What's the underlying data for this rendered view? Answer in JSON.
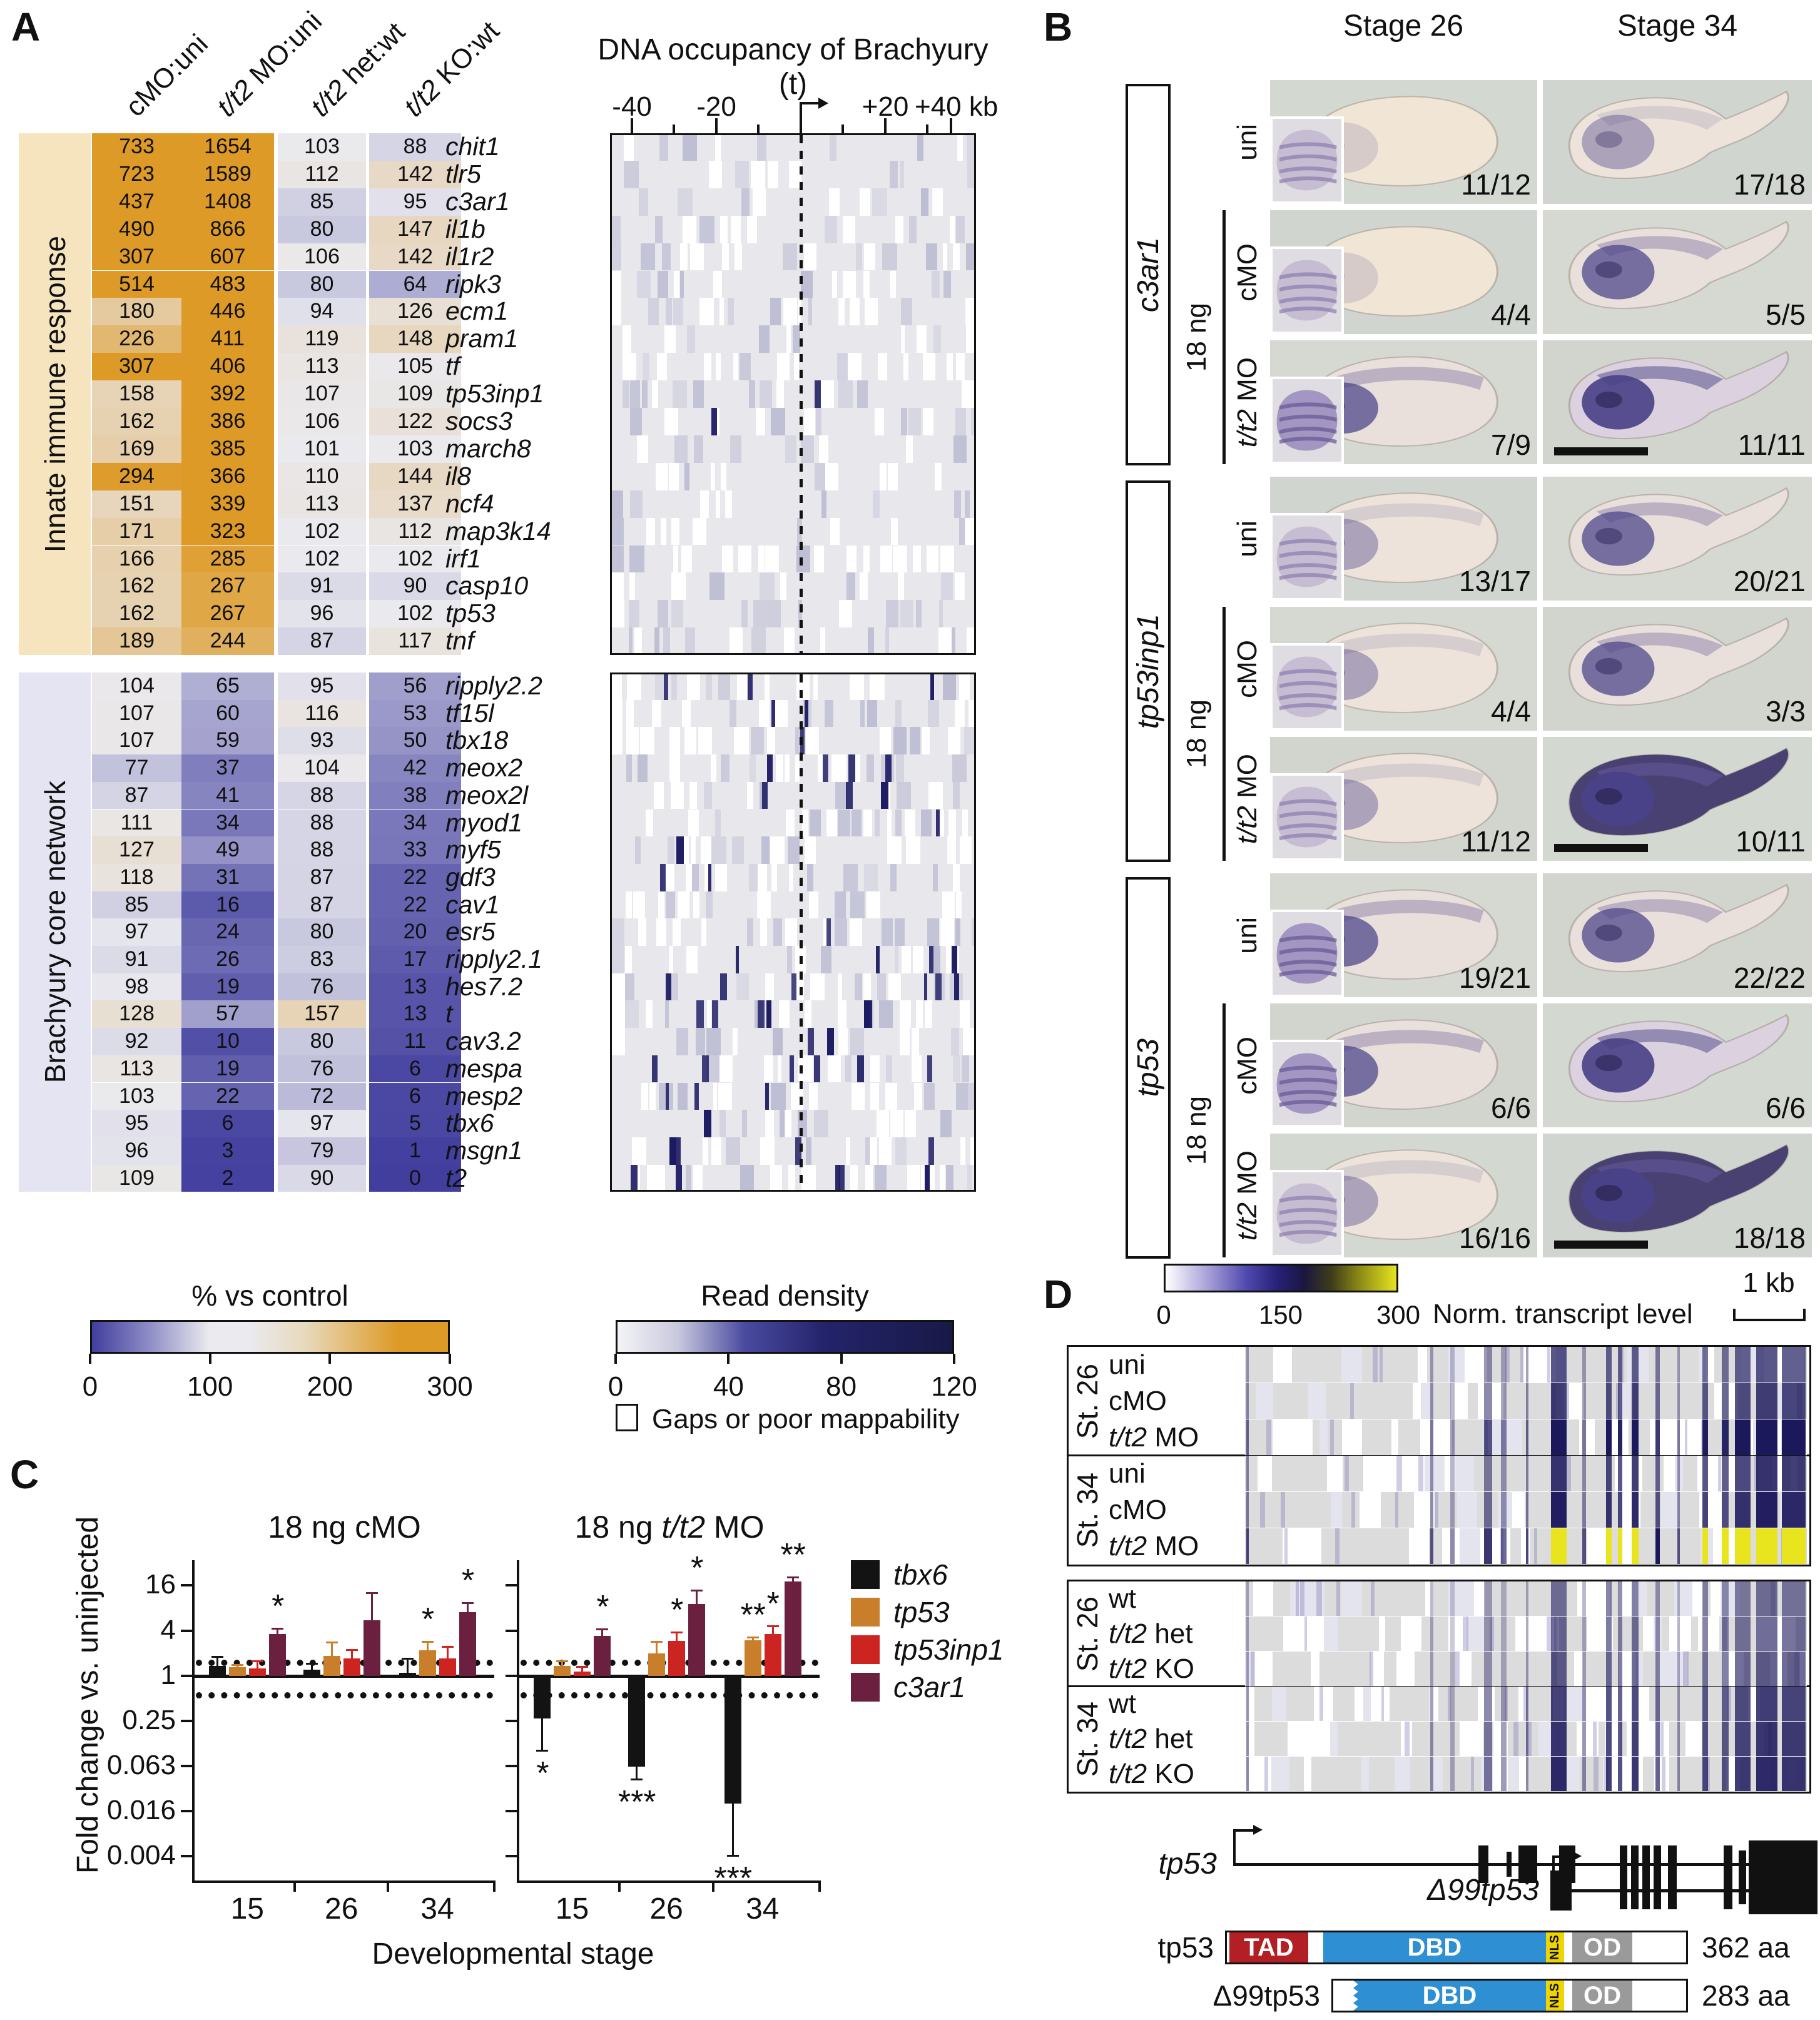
{
  "panels": {
    "a": "A",
    "b": "B",
    "c": "C",
    "d": "D"
  },
  "panel_a": {
    "col_headers": [
      "cMO:uni",
      "t/t2 MO:uni",
      "t/t2 het:wt",
      "t/t2 KO:wt"
    ],
    "occupancy": {
      "title": "DNA occupancy of Brachyury (t)",
      "axis_labels": [
        "-40",
        "-20",
        "+20",
        "+40 kb"
      ]
    },
    "groups": [
      {
        "name": "Innate immune response",
        "band_color": "#F6E4BE",
        "rows": [
          {
            "gene": "chit1",
            "values": [
              733,
              1654,
              103,
              88
            ],
            "peaks": 0
          },
          {
            "gene": "tlr5",
            "values": [
              723,
              1589,
              112,
              142
            ],
            "peaks": 0
          },
          {
            "gene": "c3ar1",
            "values": [
              437,
              1408,
              85,
              95
            ],
            "peaks": 0
          },
          {
            "gene": "il1b",
            "values": [
              490,
              866,
              80,
              147
            ],
            "peaks": 0
          },
          {
            "gene": "il1r2",
            "values": [
              307,
              607,
              106,
              142
            ],
            "peaks": 0
          },
          {
            "gene": "ripk3",
            "values": [
              514,
              483,
              80,
              64
            ],
            "peaks": 0
          },
          {
            "gene": "ecm1",
            "values": [
              180,
              446,
              94,
              126
            ],
            "peaks": 0
          },
          {
            "gene": "pram1",
            "values": [
              226,
              411,
              119,
              148
            ],
            "peaks": 0
          },
          {
            "gene": "tf",
            "values": [
              307,
              406,
              113,
              105
            ],
            "peaks": 0
          },
          {
            "gene": "tp53inp1",
            "values": [
              158,
              392,
              107,
              109
            ],
            "peaks": 1
          },
          {
            "gene": "socs3",
            "values": [
              162,
              386,
              106,
              122
            ],
            "peaks": 1
          },
          {
            "gene": "march8",
            "values": [
              169,
              385,
              101,
              103
            ],
            "peaks": 0
          },
          {
            "gene": "il8",
            "values": [
              294,
              366,
              110,
              144
            ],
            "peaks": 0
          },
          {
            "gene": "ncf4",
            "values": [
              151,
              339,
              113,
              137
            ],
            "peaks": 0
          },
          {
            "gene": "map3k14",
            "values": [
              171,
              323,
              102,
              112
            ],
            "peaks": 0
          },
          {
            "gene": "irf1",
            "values": [
              166,
              285,
              102,
              102
            ],
            "peaks": 0
          },
          {
            "gene": "casp10",
            "values": [
              162,
              267,
              91,
              90
            ],
            "peaks": 0
          },
          {
            "gene": "tp53",
            "values": [
              162,
              267,
              96,
              102
            ],
            "peaks": 0
          },
          {
            "gene": "tnf",
            "values": [
              189,
              244,
              87,
              117
            ],
            "peaks": 0
          }
        ]
      },
      {
        "name": "Brachyury core network",
        "band_color": "#E4E4F2",
        "rows": [
          {
            "gene": "ripply2.2",
            "values": [
              104,
              65,
              95,
              56
            ],
            "peaks": 3
          },
          {
            "gene": "tf15l",
            "values": [
              107,
              60,
              116,
              53
            ],
            "peaks": 2
          },
          {
            "gene": "tbx18",
            "values": [
              107,
              59,
              93,
              50
            ],
            "peaks": 1
          },
          {
            "gene": "meox2",
            "values": [
              77,
              37,
              104,
              42
            ],
            "peaks": 4
          },
          {
            "gene": "meox2l",
            "values": [
              87,
              41,
              88,
              38
            ],
            "peaks": 3
          },
          {
            "gene": "myod1",
            "values": [
              111,
              34,
              88,
              34
            ],
            "peaks": 1
          },
          {
            "gene": "myf5",
            "values": [
              127,
              49,
              88,
              33
            ],
            "peaks": 1
          },
          {
            "gene": "gdf3",
            "values": [
              118,
              31,
              87,
              22
            ],
            "peaks": 2
          },
          {
            "gene": "cav1",
            "values": [
              85,
              16,
              87,
              22
            ],
            "peaks": 0
          },
          {
            "gene": "esr5",
            "values": [
              97,
              24,
              80,
              20
            ],
            "peaks": 1
          },
          {
            "gene": "ripply2.1",
            "values": [
              91,
              26,
              83,
              17
            ],
            "peaks": 4
          },
          {
            "gene": "hes7.2",
            "values": [
              98,
              19,
              76,
              13
            ],
            "peaks": 6
          },
          {
            "gene": "t",
            "values": [
              128,
              57,
              157,
              13
            ],
            "peaks": 6
          },
          {
            "gene": "cav3.2",
            "values": [
              92,
              10,
              80,
              11
            ],
            "peaks": 2
          },
          {
            "gene": "mespa",
            "values": [
              113,
              19,
              76,
              6
            ],
            "peaks": 6
          },
          {
            "gene": "mesp2",
            "values": [
              103,
              22,
              72,
              6
            ],
            "peaks": 3
          },
          {
            "gene": "tbx6",
            "values": [
              95,
              6,
              97,
              5
            ],
            "peaks": 1
          },
          {
            "gene": "msgn1",
            "values": [
              96,
              3,
              79,
              1
            ],
            "peaks": 5
          },
          {
            "gene": "t2",
            "values": [
              109,
              2,
              90,
              0
            ],
            "peaks": 5
          }
        ]
      }
    ],
    "legend_pct": {
      "title": "% vs control",
      "ticks": [
        "0",
        "100",
        "200",
        "300"
      ]
    },
    "legend_read": {
      "title": "Read density",
      "ticks": [
        "0",
        "40",
        "80",
        "120"
      ],
      "gaps_label": "Gaps or poor mappability"
    }
  },
  "panel_b": {
    "stage_headers": [
      "Stage 26",
      "Stage 34"
    ],
    "dose_label": "18 ng",
    "groups": [
      {
        "gene": "c3ar1",
        "rows": [
          {
            "label": "uni",
            "cells": [
              {
                "count": "11/12",
                "stain": 0,
                "inset": true
              },
              {
                "count": "17/18",
                "stain": 1
              }
            ]
          },
          {
            "label": "cMO",
            "cells": [
              {
                "count": "4/4",
                "stain": 0,
                "inset": true
              },
              {
                "count": "5/5",
                "stain": 2
              }
            ]
          },
          {
            "label": "t/t2 MO",
            "cells": [
              {
                "count": "7/9",
                "stain": 2,
                "inset": true
              },
              {
                "count": "11/11",
                "stain": 3,
                "scalebar": true
              }
            ]
          }
        ]
      },
      {
        "gene": "tp53inp1",
        "rows": [
          {
            "label": "uni",
            "cells": [
              {
                "count": "13/17",
                "stain": 1,
                "inset": true
              },
              {
                "count": "20/21",
                "stain": 2
              }
            ]
          },
          {
            "label": "cMO",
            "cells": [
              {
                "count": "4/4",
                "stain": 1,
                "inset": true
              },
              {
                "count": "3/3",
                "stain": 2
              }
            ]
          },
          {
            "label": "t/t2 MO",
            "cells": [
              {
                "count": "11/12",
                "stain": 1,
                "inset": true
              },
              {
                "count": "10/11",
                "stain": 4,
                "scalebar": true
              }
            ]
          }
        ]
      },
      {
        "gene": "tp53",
        "rows": [
          {
            "label": "uni",
            "cells": [
              {
                "count": "19/21",
                "stain": 2,
                "inset": true
              },
              {
                "count": "22/22",
                "stain": 2
              }
            ]
          },
          {
            "label": "cMO",
            "cells": [
              {
                "count": "6/6",
                "stain": 2,
                "inset": true
              },
              {
                "count": "6/6",
                "stain": 3
              }
            ]
          },
          {
            "label": "t/t2 MO",
            "cells": [
              {
                "count": "16/16",
                "stain": 1,
                "inset": true
              },
              {
                "count": "18/18",
                "stain": 4,
                "scalebar": true
              }
            ]
          }
        ]
      }
    ]
  },
  "chart_data": {
    "type": "bar",
    "ylabel": "Fold change vs. uninjected",
    "xlabel": "Developmental stage",
    "yticks": [
      16,
      4,
      1,
      0.25,
      0.063,
      0.016,
      0.004
    ],
    "guide_lines": [
      1.5,
      0.55
    ],
    "categories": [
      "15",
      "26",
      "34"
    ],
    "series": [
      {
        "name": "tbx6",
        "color": "#131313"
      },
      {
        "name": "tp53",
        "color": "#C87E2A"
      },
      {
        "name": "tp53inp1",
        "color": "#CC2420"
      },
      {
        "name": "c3ar1",
        "color": "#6B2040"
      }
    ],
    "charts": [
      {
        "title": "18 ng cMO",
        "groups": [
          {
            "stage": "15",
            "bars": [
              {
                "v": 1.35,
                "e": 0.5,
                "sig": ""
              },
              {
                "v": 1.3,
                "e": 0.15,
                "sig": ""
              },
              {
                "v": 1.25,
                "e": 0.35,
                "sig": ""
              },
              {
                "v": 3.6,
                "e": 0.8,
                "sig": "*"
              }
            ]
          },
          {
            "stage": "26",
            "bars": [
              {
                "v": 1.2,
                "e": 0.3,
                "sig": ""
              },
              {
                "v": 1.85,
                "e": 1.0,
                "sig": ""
              },
              {
                "v": 1.7,
                "e": 0.6,
                "sig": ""
              },
              {
                "v": 5.5,
                "e": 7.5,
                "sig": ""
              }
            ]
          },
          {
            "stage": "34",
            "bars": [
              {
                "v": 1.1,
                "e": 0.65,
                "sig": ""
              },
              {
                "v": 2.2,
                "e": 0.7,
                "sig": "*"
              },
              {
                "v": 1.7,
                "e": 0.8,
                "sig": ""
              },
              {
                "v": 7.0,
                "e": 2.5,
                "sig": "*"
              }
            ]
          }
        ]
      },
      {
        "title": "18 ng t/t2 MO",
        "groups": [
          {
            "stage": "15",
            "bars": [
              {
                "v": 0.27,
                "e": 0.17,
                "sig": "*"
              },
              {
                "v": 1.35,
                "e": 0.25,
                "sig": ""
              },
              {
                "v": 1.15,
                "e": 0.2,
                "sig": ""
              },
              {
                "v": 3.4,
                "e": 0.9,
                "sig": "*"
              }
            ]
          },
          {
            "stage": "26",
            "bars": [
              {
                "v": 0.062,
                "e": 0.02,
                "sig": "***"
              },
              {
                "v": 2.0,
                "e": 0.9,
                "sig": ""
              },
              {
                "v": 2.9,
                "e": 1.0,
                "sig": "*"
              },
              {
                "v": 9.0,
                "e": 5.0,
                "sig": "*"
              }
            ]
          },
          {
            "stage": "34",
            "bars": [
              {
                "v": 0.02,
                "e": 0.016,
                "sig": "***"
              },
              {
                "v": 3.0,
                "e": 0.35,
                "sig": "**"
              },
              {
                "v": 3.6,
                "e": 1.1,
                "sig": "*"
              },
              {
                "v": 18,
                "e": 3,
                "sig": "**"
              }
            ]
          }
        ]
      }
    ]
  },
  "panel_d": {
    "colorbar": {
      "ticks": [
        "0",
        "150",
        "300"
      ],
      "label": "Norm. transcript level"
    },
    "scale_label": "1 kb",
    "blocks": [
      {
        "sections": [
          {
            "stage": "St. 26",
            "rows": [
              "uni",
              "cMO",
              "t/t2 MO"
            ]
          },
          {
            "stage": "St. 34",
            "rows": [
              "uni",
              "cMO",
              "t/t2 MO"
            ]
          }
        ],
        "row_intensity": [
          0.75,
          0.85,
          1.2,
          0.9,
          1.0,
          1.45
        ],
        "yellow_row": 5
      },
      {
        "sections": [
          {
            "stage": "St. 26",
            "rows": [
              "wt",
              "t/t2 het",
              "t/t2 KO"
            ]
          },
          {
            "stage": "St. 34",
            "rows": [
              "wt",
              "t/t2 het",
              "t/t2 KO"
            ]
          }
        ],
        "row_intensity": [
          0.6,
          0.65,
          0.7,
          0.85,
          0.9,
          0.95
        ],
        "yellow_row": -1
      }
    ],
    "gene_models": [
      {
        "label": "tp53"
      },
      {
        "label": "Δ99tp53"
      }
    ],
    "proteins": [
      {
        "label": "tp53",
        "length": "362 aa",
        "segments": [
          "TAD",
          "DBD",
          "NLS",
          "OD"
        ]
      },
      {
        "label": "Δ99tp53",
        "length": "283 aa",
        "segments": [
          "DBD",
          "NLS",
          "OD"
        ]
      }
    ],
    "domain_colors": {
      "TAD": "#B22025",
      "DBD": "#2E8FD2",
      "NLS": "#EED400",
      "OD": "#9A9A9A"
    }
  }
}
